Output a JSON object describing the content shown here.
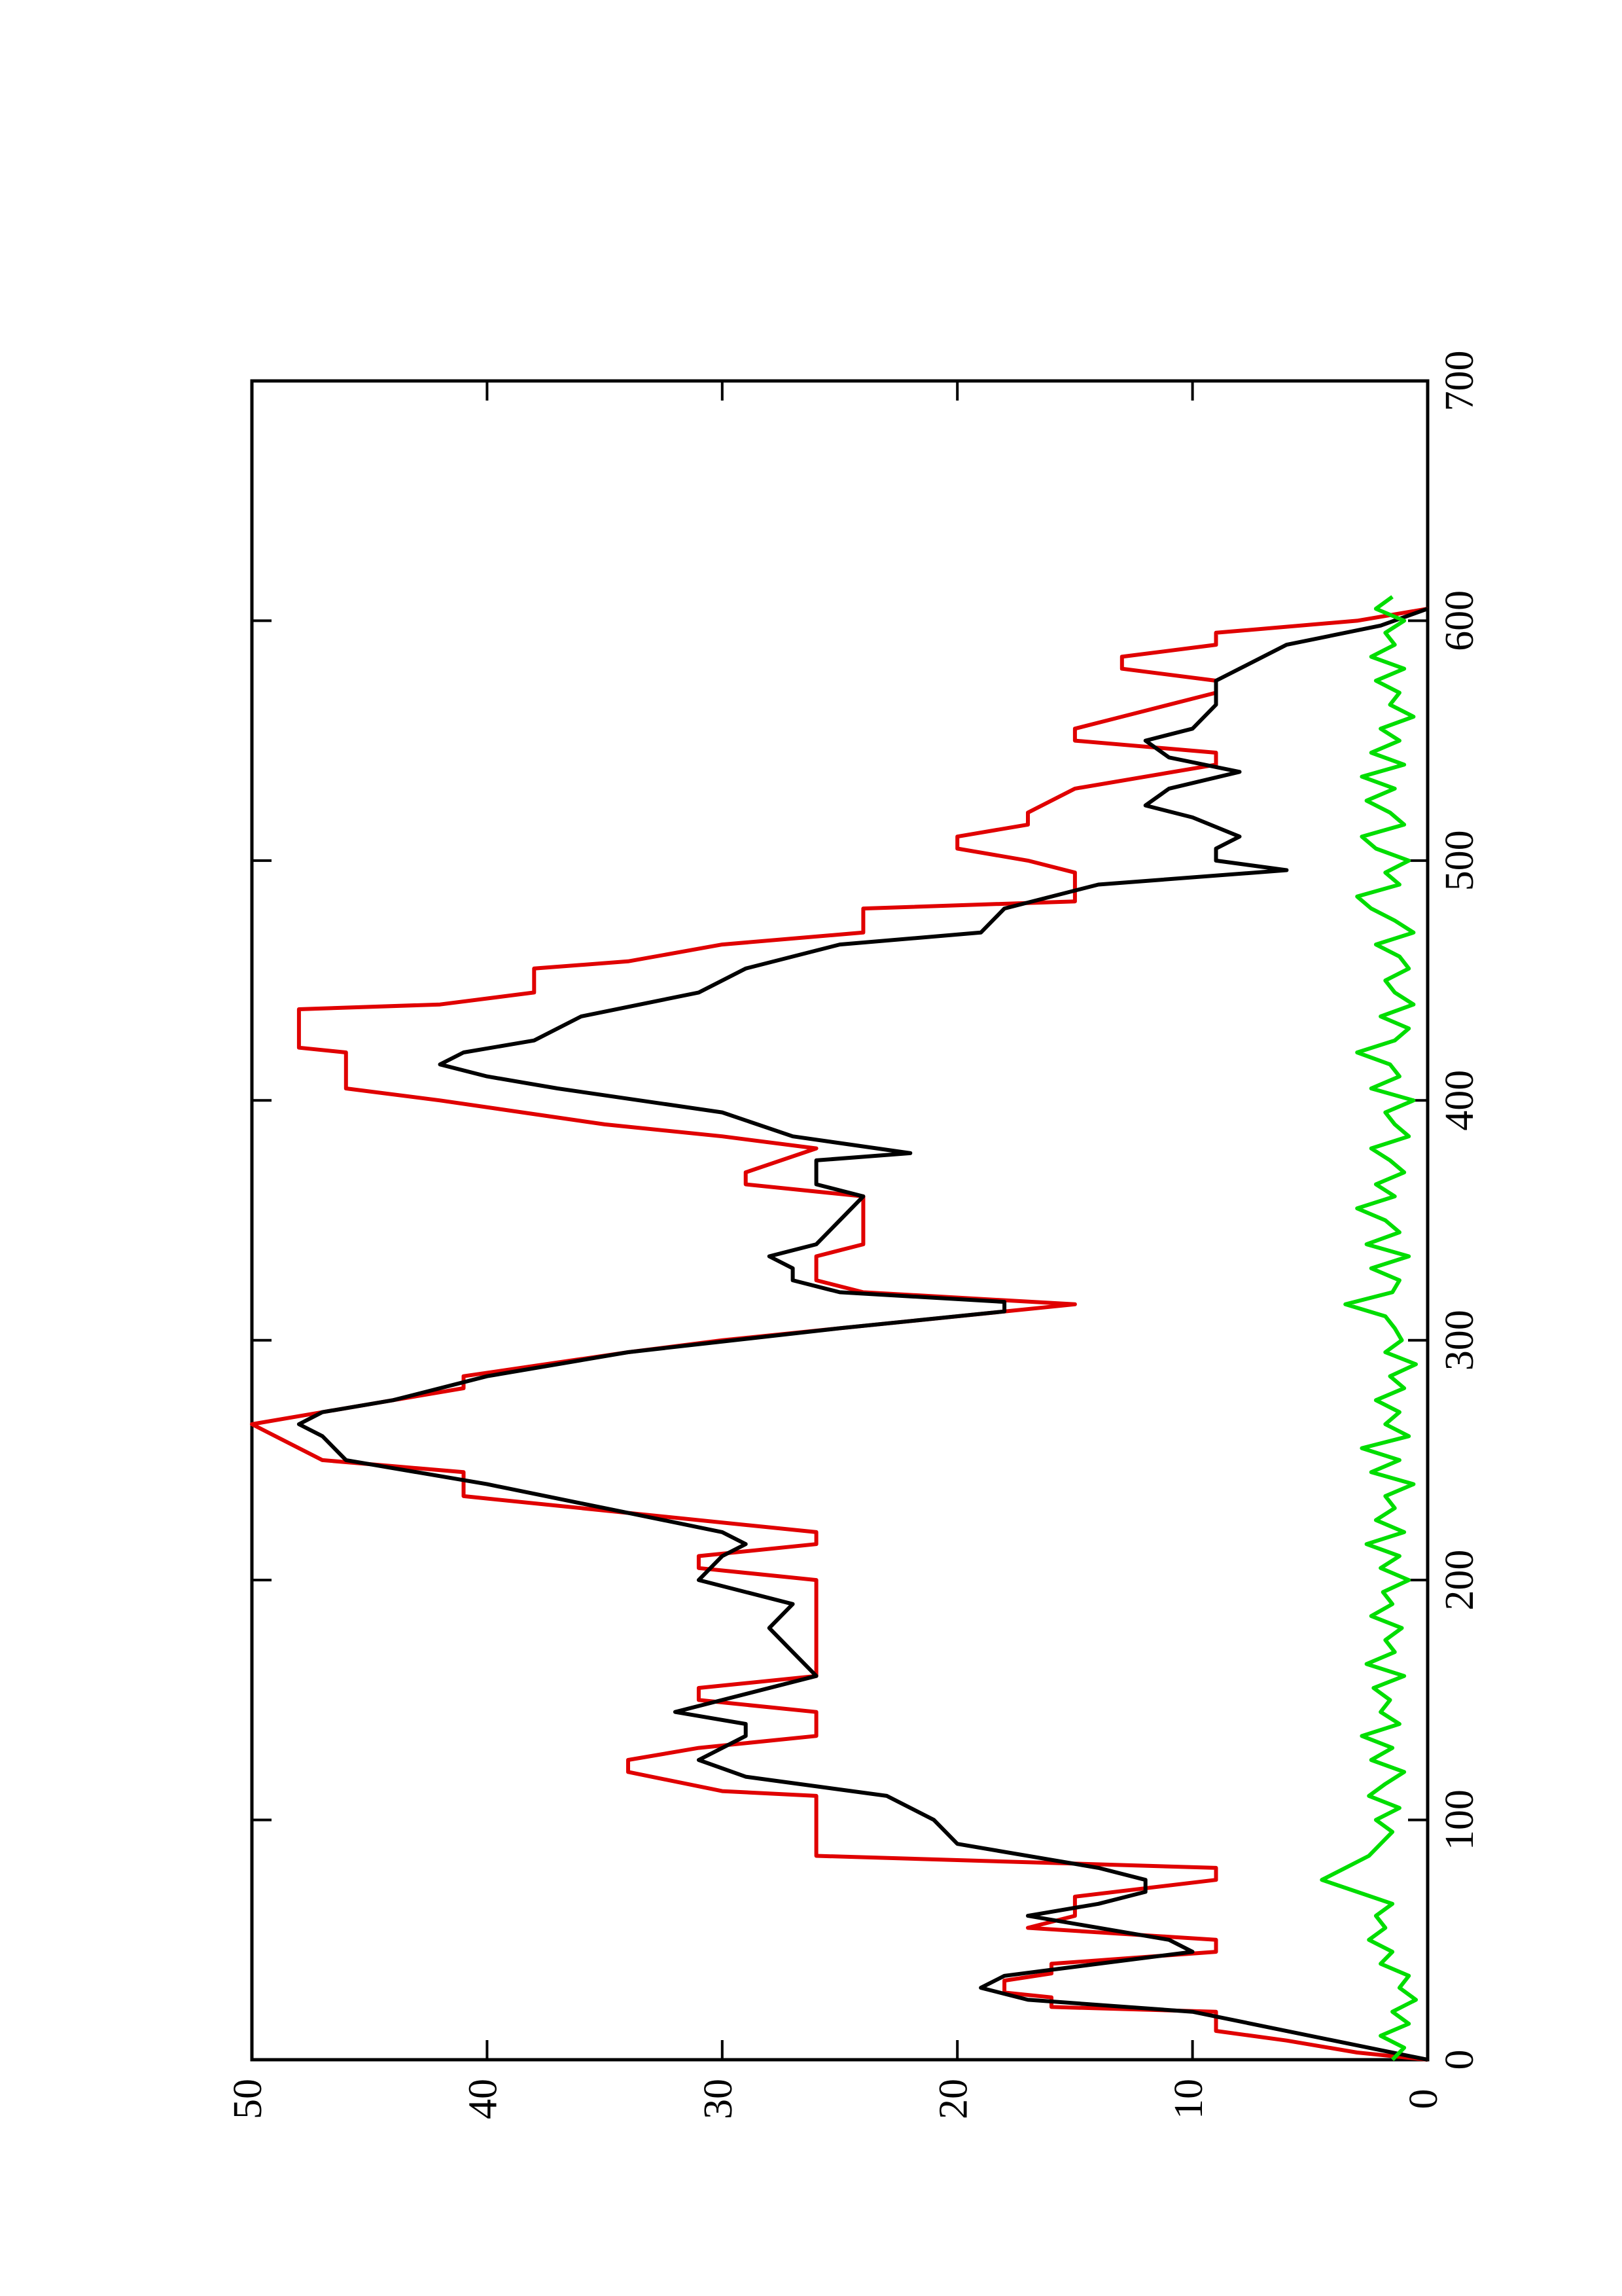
{
  "chart_data": {
    "type": "line",
    "xlim": [
      0,
      700
    ],
    "xticks": [
      0,
      100,
      200,
      300,
      400,
      500,
      600,
      700
    ],
    "ylim": [
      0,
      50
    ],
    "yticks": [
      0,
      10,
      20,
      30,
      40,
      50
    ],
    "series": [
      {
        "color": "#e00000",
        "x": [
          0,
          3,
          8,
          12,
          20,
          22,
          26,
          28,
          33,
          36,
          40,
          45,
          50,
          55,
          60,
          68,
          75,
          80,
          85,
          110,
          112,
          120,
          125,
          130,
          135,
          145,
          150,
          155,
          160,
          200,
          205,
          210,
          215,
          220,
          235,
          245,
          250,
          260,
          265,
          270,
          280,
          285,
          295,
          300,
          315,
          320,
          325,
          335,
          340,
          360,
          365,
          370,
          380,
          385,
          390,
          400,
          405,
          420,
          422,
          438,
          440,
          445,
          455,
          458,
          465,
          470,
          480,
          483,
          495,
          500,
          505,
          510,
          515,
          520,
          530,
          540,
          545,
          550,
          555,
          560,
          570,
          575,
          580,
          585,
          590,
          595,
          600,
          605
        ],
        "values": [
          0,
          3,
          6,
          9,
          9,
          16,
          16,
          18,
          18,
          16,
          16,
          9,
          9,
          17,
          15,
          15,
          9,
          9,
          26,
          26,
          30,
          34,
          34,
          31,
          26,
          26,
          31,
          31,
          26,
          26,
          31,
          31,
          26,
          26,
          41,
          41,
          47,
          49,
          50,
          47,
          41,
          41,
          34,
          30,
          15,
          24,
          26,
          26,
          24,
          24,
          29,
          29,
          26,
          30,
          35,
          42,
          46,
          46,
          48,
          48,
          42,
          38,
          38,
          34,
          30,
          24,
          24,
          15,
          15,
          17,
          20,
          20,
          17,
          17,
          15,
          9,
          9,
          15,
          15,
          13,
          9,
          9,
          13,
          13,
          9,
          9,
          3,
          0
        ]
      },
      {
        "color": "#000000",
        "x": [
          0,
          10,
          20,
          25,
          30,
          35,
          40,
          45,
          50,
          60,
          65,
          70,
          75,
          80,
          90,
          100,
          110,
          118,
          125,
          135,
          140,
          145,
          150,
          160,
          170,
          180,
          190,
          200,
          210,
          215,
          220,
          230,
          240,
          250,
          260,
          265,
          270,
          275,
          285,
          295,
          305,
          312,
          316,
          320,
          325,
          330,
          335,
          340,
          350,
          360,
          365,
          375,
          378,
          385,
          395,
          405,
          410,
          415,
          420,
          425,
          435,
          445,
          455,
          465,
          470,
          480,
          490,
          496,
          500,
          505,
          510,
          518,
          523,
          530,
          537,
          543,
          550,
          555,
          565,
          575,
          580,
          590,
          598,
          605
        ],
        "values": [
          0,
          5,
          10,
          17,
          19,
          18,
          14,
          10,
          11,
          17,
          14,
          12,
          12,
          14,
          20,
          21,
          23,
          29,
          31,
          29,
          29,
          32,
          30,
          26,
          27,
          28,
          27,
          31,
          30,
          29,
          30,
          35,
          40,
          46,
          47,
          48,
          47,
          44,
          40,
          34,
          25,
          18,
          18,
          25,
          27,
          27,
          28,
          26,
          25,
          24,
          26,
          26,
          22,
          27,
          30,
          37,
          40,
          42,
          41,
          38,
          36,
          31,
          29,
          25,
          19,
          18,
          14,
          6,
          9,
          9,
          8,
          10,
          12,
          11,
          8,
          11,
          12,
          10,
          9,
          9,
          8,
          6,
          2,
          0
        ]
      },
      {
        "color": "#00dd00",
        "x": [
          0,
          5,
          10,
          15,
          20,
          25,
          30,
          35,
          40,
          45,
          50,
          55,
          60,
          65,
          70,
          75,
          80,
          85,
          90,
          95,
          100,
          105,
          110,
          115,
          120,
          125,
          130,
          135,
          140,
          145,
          150,
          155,
          160,
          165,
          170,
          175,
          180,
          185,
          190,
          195,
          200,
          205,
          210,
          215,
          220,
          225,
          230,
          235,
          240,
          245,
          250,
          255,
          260,
          265,
          270,
          275,
          280,
          285,
          290,
          295,
          300,
          305,
          310,
          315,
          320,
          325,
          330,
          335,
          340,
          345,
          350,
          355,
          360,
          365,
          370,
          375,
          380,
          385,
          390,
          395,
          400,
          405,
          410,
          415,
          420,
          425,
          430,
          435,
          440,
          445,
          450,
          455,
          460,
          465,
          470,
          475,
          480,
          485,
          490,
          495,
          500,
          505,
          510,
          515,
          520,
          525,
          530,
          535,
          540,
          545,
          550,
          555,
          560,
          565,
          570,
          575,
          580,
          585,
          590,
          595,
          600,
          605,
          610
        ],
        "values": [
          1.5,
          1,
          2,
          0.8,
          1.5,
          0.5,
          1.2,
          0.8,
          2,
          1.5,
          2.5,
          1.8,
          2.2,
          1.5,
          3,
          4.5,
          3.5,
          2.5,
          2,
          1.5,
          2.2,
          1.2,
          2.5,
          1.8,
          1,
          2.4,
          1.5,
          2.8,
          1.2,
          2,
          1.6,
          2.3,
          1,
          2.6,
          1.4,
          1.8,
          1.1,
          2.4,
          1.5,
          1.9,
          0.8,
          2,
          1.2,
          2.6,
          1,
          2.2,
          1.4,
          1.8,
          0.6,
          2.4,
          1.2,
          2.8,
          0.8,
          1.8,
          1.2,
          2.2,
          1,
          1.6,
          0.5,
          1.8,
          1.1,
          1.4,
          1.8,
          3.5,
          1.5,
          1.2,
          2.4,
          0.8,
          2.6,
          1.2,
          1.8,
          3,
          1.4,
          2.2,
          1,
          1.6,
          2.4,
          0.8,
          1.4,
          1.8,
          0.6,
          2.4,
          1.2,
          1.6,
          3,
          1.4,
          0.8,
          2,
          0.6,
          1.4,
          1.8,
          0.8,
          1.2,
          2.2,
          0.6,
          1.4,
          2.4,
          3,
          1.2,
          1.8,
          0.8,
          2.2,
          2.8,
          1,
          1.6,
          2.6,
          1.4,
          2.8,
          1,
          2.4,
          1.2,
          2,
          0.6,
          1.6,
          1.2,
          2.2,
          1,
          2.4,
          1.4,
          1.8,
          1,
          2.2,
          1.5
        ]
      }
    ]
  }
}
